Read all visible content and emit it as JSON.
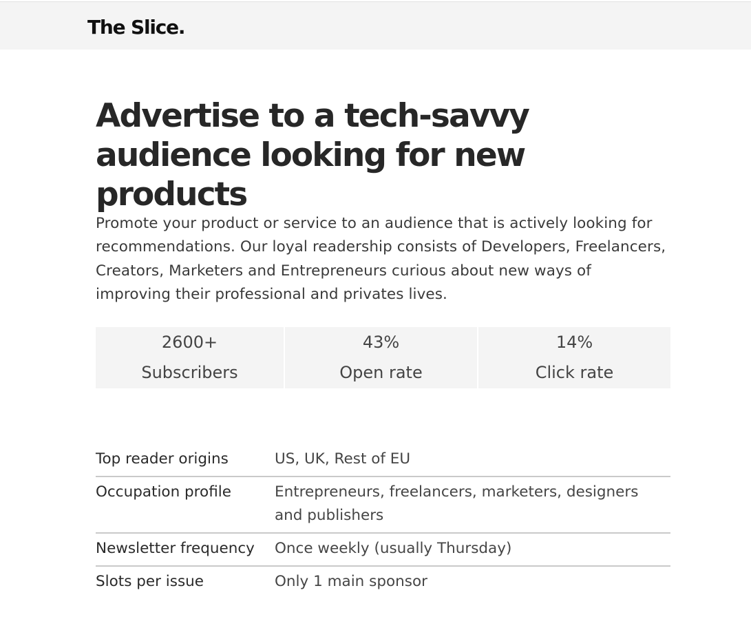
{
  "header": {
    "brand": "The Slice."
  },
  "main": {
    "headline": "Advertise to a tech-savvy audience looking for new products",
    "intro": "Promote your product or service to an audience that is actively looking for recommendations. Our loyal readership consists of Developers, Freelancers, Creators, Marketers and Entrepreneurs curious about new ways of improving their professional and privates lives.",
    "stats": [
      {
        "value": "2600+",
        "label": "Subscribers"
      },
      {
        "value": "43%",
        "label": "Open rate"
      },
      {
        "value": "14%",
        "label": "Click rate"
      }
    ],
    "specs": [
      {
        "label": "Top reader origins",
        "value": "US, UK, Rest of EU"
      },
      {
        "label": "Occupation profile",
        "value": "Entrepreneurs, freelancers, marketers, designers and publishers"
      },
      {
        "label": "Newsletter frequency",
        "value": "Once weekly (usually Thursday)"
      },
      {
        "label": "Slots per issue",
        "value": "Only 1 main sponsor"
      }
    ]
  }
}
